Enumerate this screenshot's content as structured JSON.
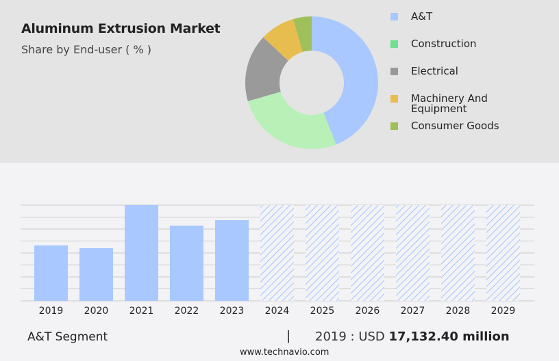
{
  "header": {
    "title": "Aluminum Extrusion Market",
    "subtitle": "Share by End-user ( % )"
  },
  "chart_data": [
    {
      "type": "pie",
      "variant": "donut",
      "title": "Aluminum Extrusion Market",
      "subtitle": "Share by End-user ( % )",
      "categories": [
        "A&T",
        "Construction",
        "Electrical",
        "Machinery And Equipment",
        "Consumer Goods"
      ],
      "values": [
        44,
        26.5,
        16.5,
        8.5,
        4.5
      ],
      "colors": [
        "#a8c8ff",
        "#b8f0b8",
        "#9a9a9a",
        "#e6bd4e",
        "#9fbf5a"
      ],
      "legend_colors": [
        "#a8c8ff",
        "#6ee08f",
        "#999999",
        "#e6bd4e",
        "#9fbf5a"
      ],
      "legend_placement": "right"
    },
    {
      "type": "bar",
      "categories": [
        "2019",
        "2020",
        "2021",
        "2022",
        "2023",
        "2024",
        "2025",
        "2026",
        "2027",
        "2028",
        "2029"
      ],
      "values": [
        17132.4,
        16290,
        29610,
        23270,
        24960,
        null,
        null,
        null,
        null,
        null,
        null
      ],
      "forecast": [
        false,
        false,
        false,
        false,
        false,
        true,
        true,
        true,
        true,
        true,
        true
      ],
      "unit": "USD million",
      "ylim": [
        0,
        29610
      ],
      "grid": true,
      "color": "#a8c8ff"
    }
  ],
  "footer": {
    "segment": "A&T Segment",
    "separator": "|",
    "year_label": "2019 : USD ",
    "value": "17,132.40 million",
    "site": "www.technavio.com"
  }
}
